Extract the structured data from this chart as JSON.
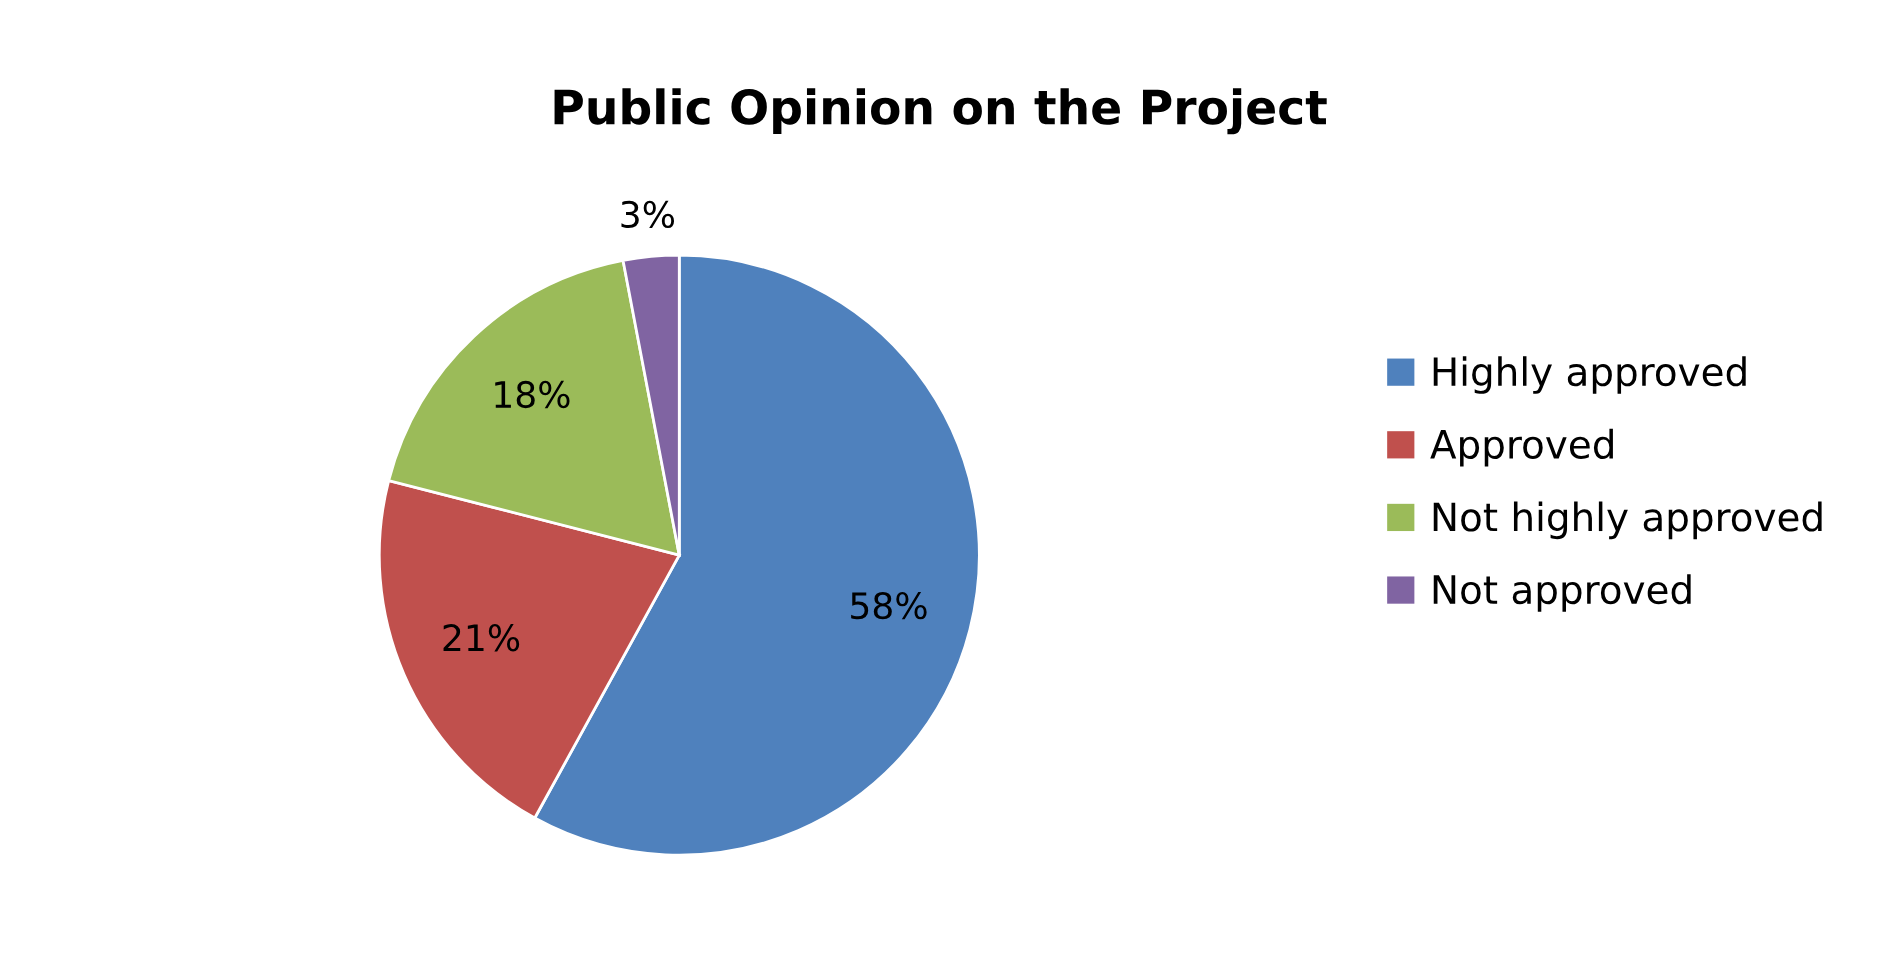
{
  "chart_data": {
    "type": "pie",
    "title": "Public Opinion on the Project",
    "categories": [
      "Highly approved",
      "Approved",
      "Not highly approved",
      "Not approved"
    ],
    "values": [
      58,
      21,
      18,
      3
    ],
    "colors": [
      "#4f81bd",
      "#c0504d",
      "#9bbb59",
      "#8064a2"
    ],
    "value_labels": [
      "58%",
      "21%",
      "18%",
      "3%"
    ],
    "legend": "right"
  }
}
